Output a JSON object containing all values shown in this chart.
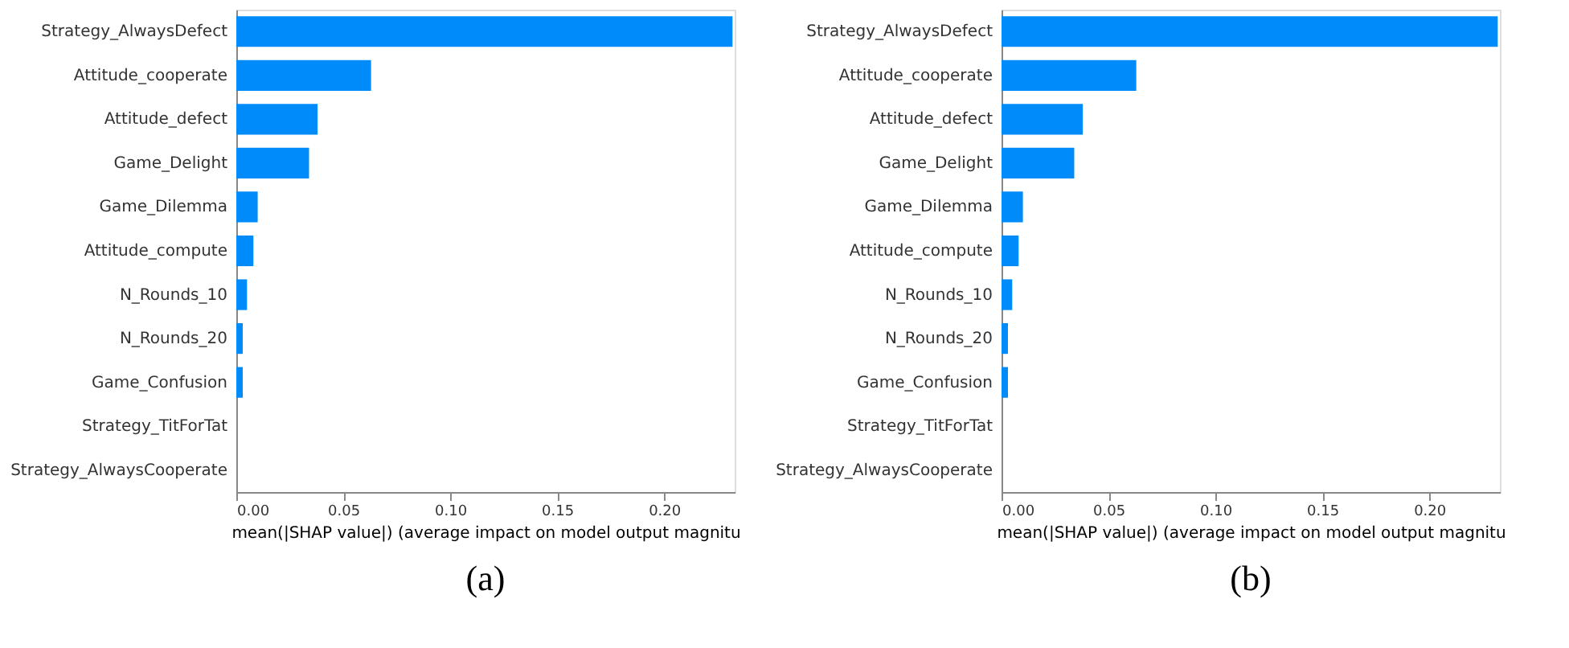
{
  "chart_data": [
    {
      "type": "bar",
      "orientation": "horizontal",
      "title": "(a)",
      "xlabel": "mean(|SHAP value|) (average impact on model output magnitu",
      "categories": [
        "Strategy_AlwaysDefect",
        "Attitude_cooperate",
        "Attitude_defect",
        "Game_Delight",
        "Game_Dilemma",
        "Attitude_compute",
        "N_Rounds_10",
        "N_Rounds_20",
        "Game_Confusion",
        "Strategy_TitForTat",
        "Strategy_AlwaysCooperate"
      ],
      "values": [
        0.232,
        0.063,
        0.038,
        0.034,
        0.01,
        0.008,
        0.005,
        0.003,
        0.003,
        0,
        0
      ],
      "color": "#008bfb",
      "xlim": [
        0,
        0.233
      ],
      "xticks": [
        {
          "value": 0,
          "label": "0.00"
        },
        {
          "value": 0.05,
          "label": "0.05"
        },
        {
          "value": 0.1,
          "label": "0.10"
        },
        {
          "value": 0.15,
          "label": "0.15"
        },
        {
          "value": 0.2,
          "label": "0.20"
        }
      ],
      "grid": false
    },
    {
      "type": "bar",
      "orientation": "horizontal",
      "title": "(b)",
      "xlabel": "mean(|SHAP value|) (average impact on model output magnitu",
      "categories": [
        "Strategy_AlwaysDefect",
        "Attitude_cooperate",
        "Attitude_defect",
        "Game_Delight",
        "Game_Dilemma",
        "Attitude_compute",
        "N_Rounds_10",
        "N_Rounds_20",
        "Game_Confusion",
        "Strategy_TitForTat",
        "Strategy_AlwaysCooperate"
      ],
      "values": [
        0.232,
        0.063,
        0.038,
        0.034,
        0.01,
        0.008,
        0.005,
        0.003,
        0.003,
        0,
        0
      ],
      "color": "#008bfb",
      "xlim": [
        0,
        0.233
      ],
      "xticks": [
        {
          "value": 0,
          "label": "0.00"
        },
        {
          "value": 0.05,
          "label": "0.05"
        },
        {
          "value": 0.1,
          "label": "0.10"
        },
        {
          "value": 0.15,
          "label": "0.15"
        },
        {
          "value": 0.2,
          "label": "0.20"
        }
      ],
      "grid": false
    }
  ]
}
